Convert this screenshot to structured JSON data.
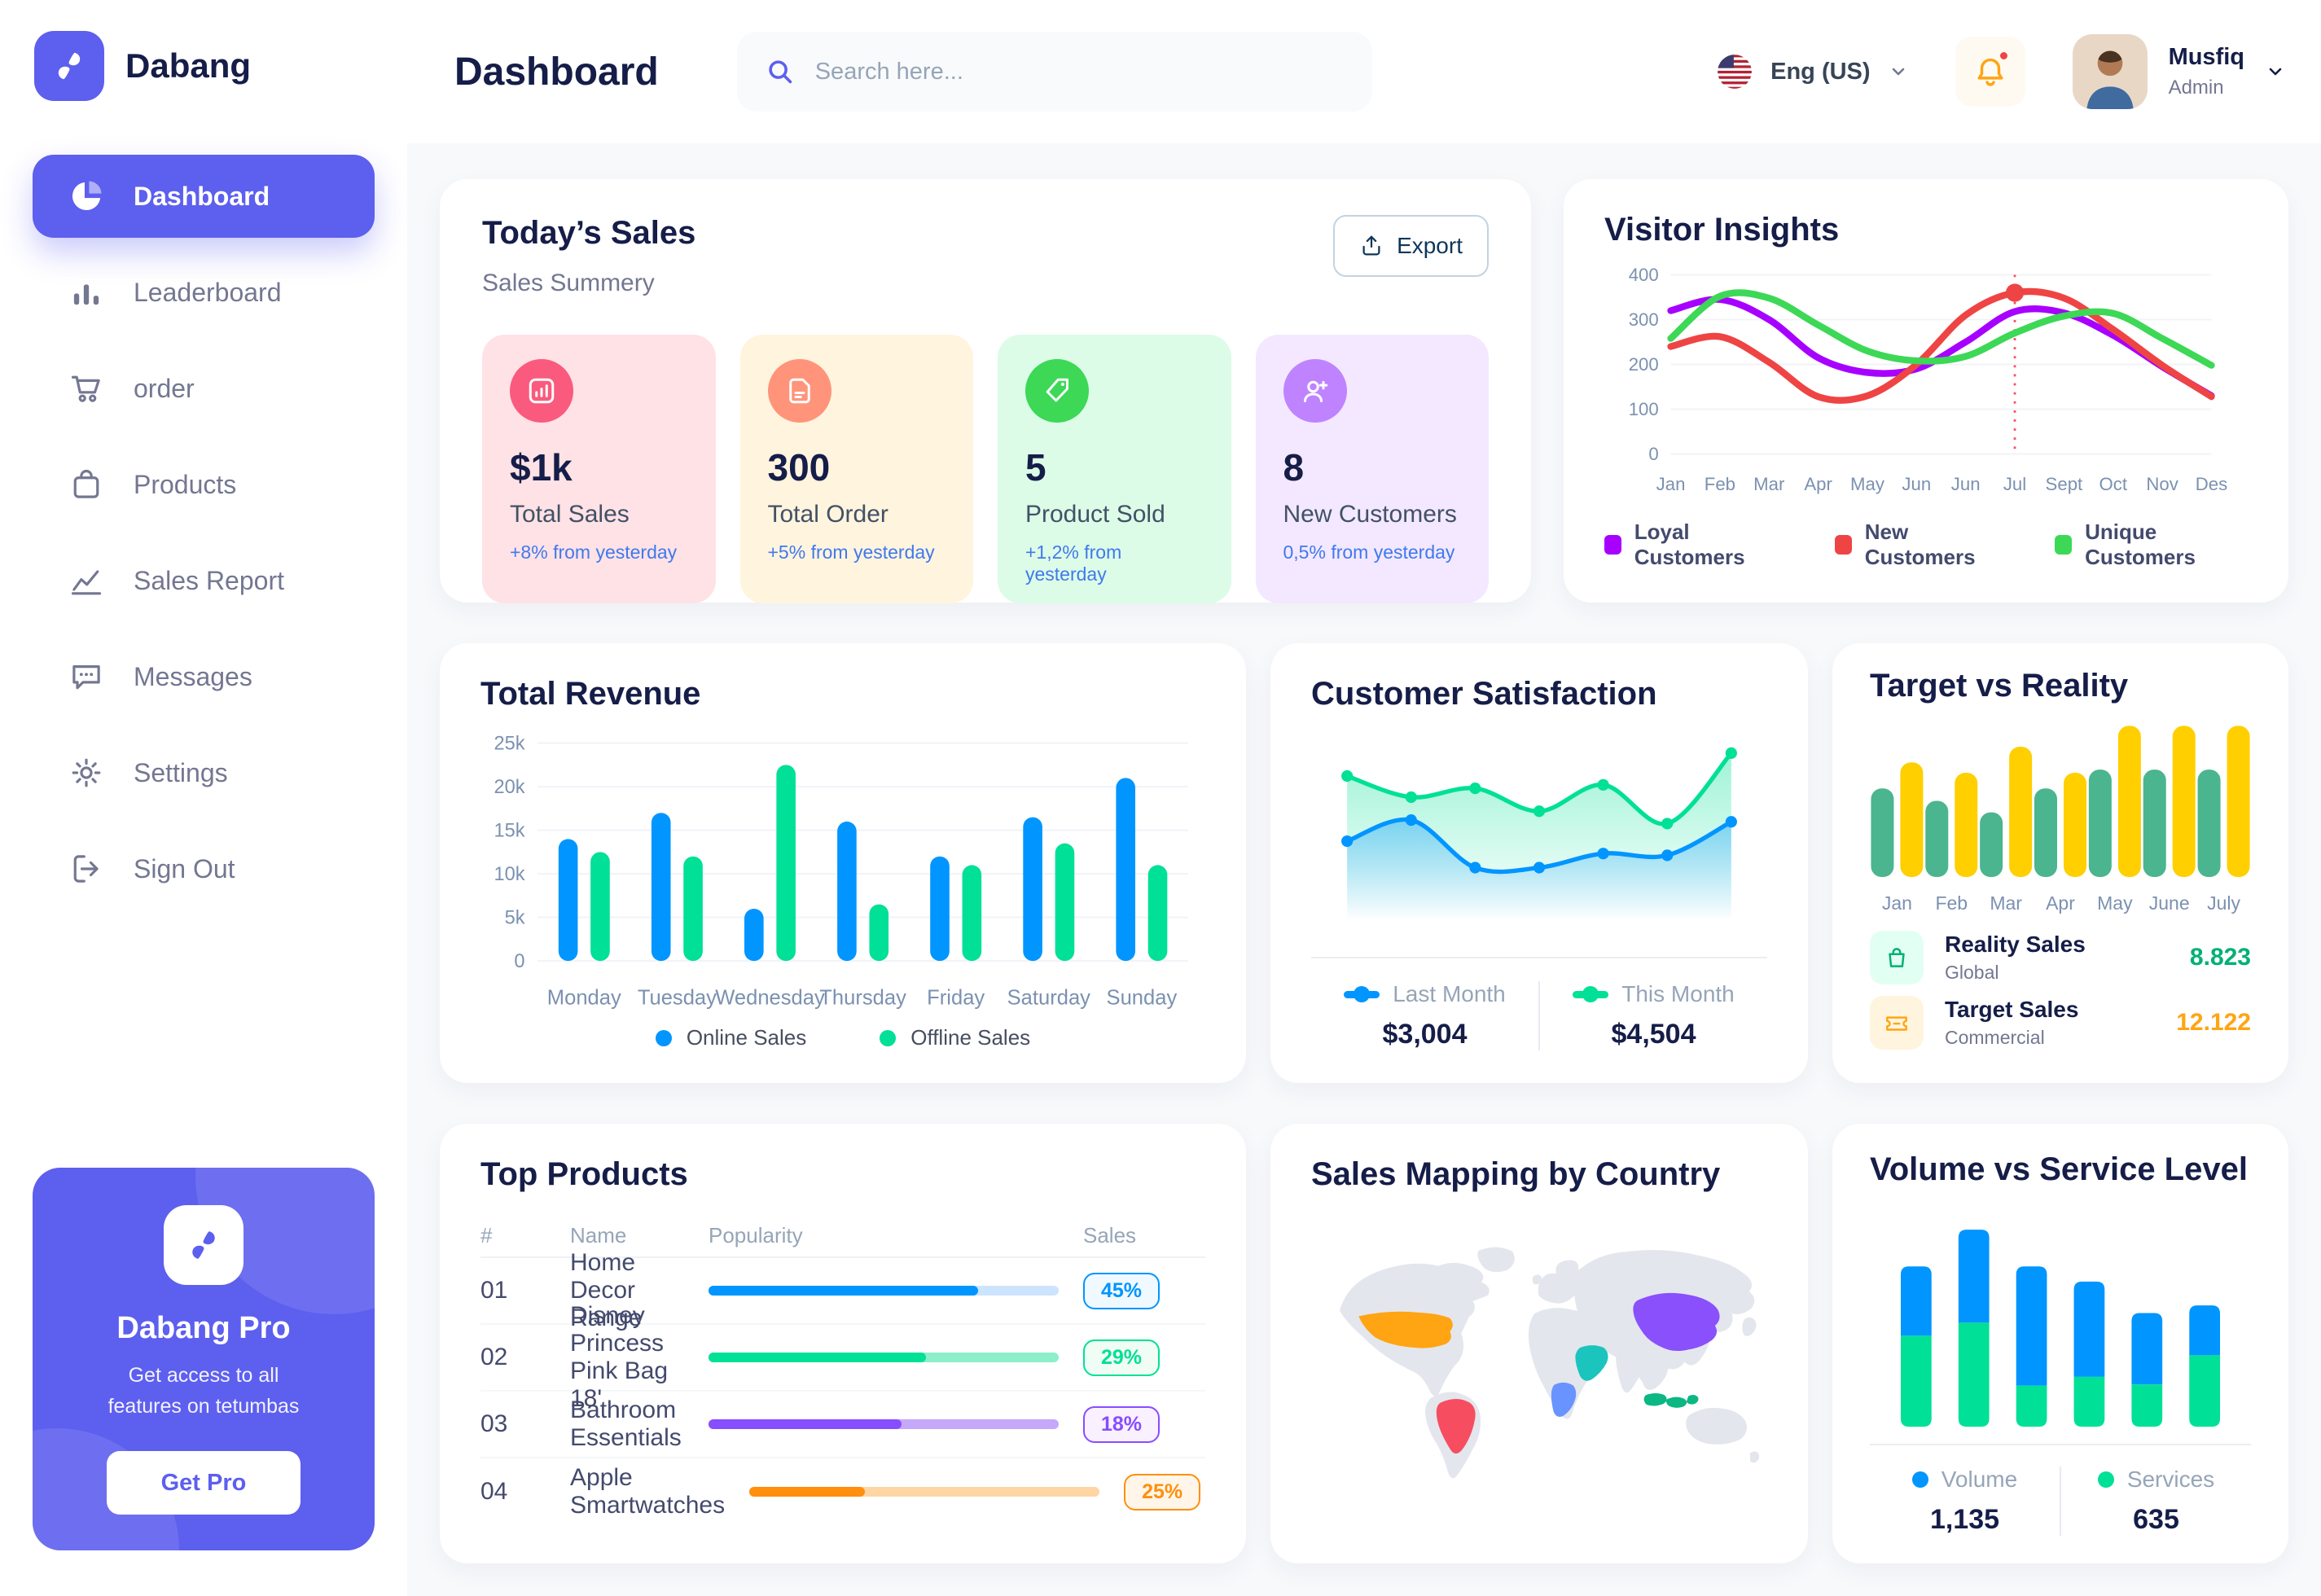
{
  "sidebar": {
    "logo_text": "Dabang",
    "items": [
      {
        "id": "dashboard",
        "label": "Dashboard",
        "icon": "pie-chart-icon",
        "active": true
      },
      {
        "id": "leaderboard",
        "label": "Leaderboard",
        "icon": "leaderboard-icon",
        "active": false
      },
      {
        "id": "order",
        "label": "order",
        "icon": "cart-icon",
        "active": false
      },
      {
        "id": "products",
        "label": "Products",
        "icon": "bag-icon",
        "active": false
      },
      {
        "id": "sales-report",
        "label": "Sales Report",
        "icon": "line-chart-icon",
        "active": false
      },
      {
        "id": "messages",
        "label": "Messages",
        "icon": "message-icon",
        "active": false
      },
      {
        "id": "settings",
        "label": "Settings",
        "icon": "gear-icon",
        "active": false
      },
      {
        "id": "sign-out",
        "label": "Sign Out",
        "icon": "sign-out-icon",
        "active": false
      }
    ],
    "pro": {
      "title": "Dabang Pro",
      "subtitle": "Get access to all features on tetumbas",
      "button_label": "Get Pro"
    }
  },
  "header": {
    "title": "Dashboard",
    "search_placeholder": "Search here...",
    "language": "Eng (US)",
    "has_unread_notification": true,
    "user": {
      "name": "Musfiq",
      "role": "Admin"
    }
  },
  "today_sales": {
    "title": "Today’s Sales",
    "subtitle": "Sales Summery",
    "export_label": "Export",
    "cards": [
      {
        "value": "$1k",
        "label": "Total Sales",
        "delta": "+8% from yesterday",
        "icon": "sales-chart-icon",
        "bg": "#FFE2E5",
        "icon_bg": "#FA5A7D"
      },
      {
        "value": "300",
        "label": "Total Order",
        "delta": "+5% from yesterday",
        "icon": "order-file-icon",
        "bg": "#FFF4DE",
        "icon_bg": "#FF947A"
      },
      {
        "value": "5",
        "label": "Product Sold",
        "delta": "+1,2% from yesterday",
        "icon": "tag-icon",
        "bg": "#DCFCE7",
        "icon_bg": "#3CD856"
      },
      {
        "value": "8",
        "label": "New Customers",
        "delta": "0,5% from yesterday",
        "icon": "user-plus-icon",
        "bg": "#F3E8FF",
        "icon_bg": "#BF83FF"
      }
    ]
  },
  "chart_data": [
    {
      "id": "visitor_insights",
      "type": "line",
      "title": "Visitor Insights",
      "x": [
        "Jan",
        "Feb",
        "Mar",
        "Apr",
        "May",
        "Jun",
        "Jun",
        "Jul",
        "Sept",
        "Oct",
        "Nov",
        "Des"
      ],
      "ylim": [
        0,
        400
      ],
      "yticks": [
        0,
        100,
        200,
        300,
        400
      ],
      "series": [
        {
          "name": "Loyal Customers",
          "color": "#A700FF",
          "values": [
            320,
            345,
            300,
            215,
            182,
            190,
            250,
            318,
            315,
            265,
            195,
            130
          ]
        },
        {
          "name": "New Customers",
          "color": "#EF4444",
          "values": [
            240,
            262,
            205,
            128,
            130,
            200,
            310,
            360,
            348,
            278,
            198,
            128
          ]
        },
        {
          "name": "Unique Customers",
          "color": "#3CD856",
          "values": [
            258,
            352,
            348,
            288,
            230,
            208,
            218,
            270,
            308,
            314,
            258,
            198
          ]
        }
      ],
      "highlight": {
        "series": "New Customers",
        "x_index": 7,
        "value": 360
      },
      "legend_position": "bottom",
      "grid": true
    },
    {
      "id": "total_revenue",
      "type": "bar",
      "title": "Total Revenue",
      "categories": [
        "Monday",
        "Tuesday",
        "Wednesday",
        "Thursday",
        "Friday",
        "Saturday",
        "Sunday"
      ],
      "ylim": [
        0,
        25
      ],
      "yticks": [
        0,
        5,
        10,
        15,
        20,
        25
      ],
      "ytick_labels": [
        "0",
        "5k",
        "10k",
        "15k",
        "20k",
        "25k"
      ],
      "series": [
        {
          "name": "Online Sales",
          "color": "#0095FF",
          "values": [
            14,
            17,
            6,
            16,
            12,
            16.5,
            21
          ]
        },
        {
          "name": "Offline Sales",
          "color": "#00E096",
          "values": [
            12.5,
            12,
            22.5,
            6.5,
            11,
            13.5,
            11
          ]
        }
      ],
      "legend_position": "bottom",
      "grid": true
    },
    {
      "id": "customer_satisfaction",
      "type": "area",
      "title": "Customer Satisfaction",
      "series": [
        {
          "name": "Last Month",
          "color": "#0095FF",
          "total": "$3,004",
          "values": [
            45,
            57,
            30,
            30,
            38,
            37,
            56
          ]
        },
        {
          "name": "This Month",
          "color": "#00E096",
          "total": "$4,504",
          "values": [
            82,
            70,
            75,
            62,
            77,
            55,
            95
          ]
        }
      ],
      "legend_position": "bottom"
    },
    {
      "id": "target_vs_reality",
      "type": "bar",
      "title": "Target vs Reality",
      "categories": [
        "Jan",
        "Feb",
        "Mar",
        "Apr",
        "May",
        "June",
        "July"
      ],
      "ylim": [
        0,
        15
      ],
      "series": [
        {
          "name": "Reality Sales",
          "color": "#4AB58E",
          "values": [
            8.5,
            7.3,
            6.2,
            8.5,
            10.3,
            10.3,
            10.3
          ]
        },
        {
          "name": "Target Sales",
          "color": "#FFCF00",
          "values": [
            11,
            10,
            12.5,
            10,
            14.5,
            14.5,
            14.5
          ]
        }
      ],
      "legend": [
        {
          "label": "Reality Sales",
          "sub": "Global",
          "value": "8.823",
          "value_color": "#00B074",
          "icon": "bag-small-icon",
          "icon_bg": "#E2FFF3",
          "icon_color": "#00B074"
        },
        {
          "label": "Target Sales",
          "sub": "Commercial",
          "value": "12.122",
          "value_color": "#FFA412",
          "icon": "ticket-icon",
          "icon_bg": "#FFF4DE",
          "icon_color": "#FFA412"
        }
      ]
    },
    {
      "id": "top_products",
      "type": "table",
      "title": "Top Products",
      "headers": [
        "#",
        "Name",
        "Popularity",
        "Sales"
      ],
      "rows": [
        {
          "num": "01",
          "name": "Home Decor Range",
          "popularity": 77,
          "sales": "45%",
          "bar": "#0095FF",
          "track": "#CDE4FF",
          "badge_text": "#0095FF",
          "badge_bg": "#F0F9FF"
        },
        {
          "num": "02",
          "name": "Disney Princess Pink Bag 18'",
          "popularity": 62,
          "sales": "29%",
          "bar": "#00E096",
          "track": "#8CEFC9",
          "badge_text": "#00E096",
          "badge_bg": "#F0FDF4"
        },
        {
          "num": "03",
          "name": "Bathroom Essentials",
          "popularity": 55,
          "sales": "18%",
          "bar": "#884DFF",
          "track": "#C5A8FA",
          "badge_text": "#884DFF",
          "badge_bg": "#F9F1FF"
        },
        {
          "num": "04",
          "name": "Apple Smartwatches",
          "popularity": 33,
          "sales": "25%",
          "bar": "#FF8F0D",
          "track": "#FFD5A4",
          "badge_text": "#FF8F0D",
          "badge_bg": "#FFF6E9"
        }
      ]
    },
    {
      "id": "sales_mapping",
      "type": "map",
      "title": "Sales Mapping by Country",
      "countries": [
        {
          "name": "United States",
          "color": "#FFA412"
        },
        {
          "name": "Brazil",
          "color": "#F64E60"
        },
        {
          "name": "China",
          "color": "#8950FC"
        },
        {
          "name": "Saudi Arabia",
          "color": "#1BC5BD"
        },
        {
          "name": "Democratic Republic of Congo",
          "color": "#6993FF"
        },
        {
          "name": "Indonesia",
          "color": "#0BB783"
        }
      ]
    },
    {
      "id": "volume_service",
      "type": "stacked-bar",
      "title": "Volume vs Service Level",
      "series": [
        {
          "name": "Volume",
          "color": "#0095FF",
          "total": "1,135",
          "values": [
            320,
            430,
            550,
            440,
            330,
            230
          ]
        },
        {
          "name": "Services",
          "color": "#00E096",
          "total": "635",
          "values": [
            420,
            480,
            190,
            230,
            195,
            330
          ]
        }
      ],
      "legend_position": "bottom"
    }
  ]
}
